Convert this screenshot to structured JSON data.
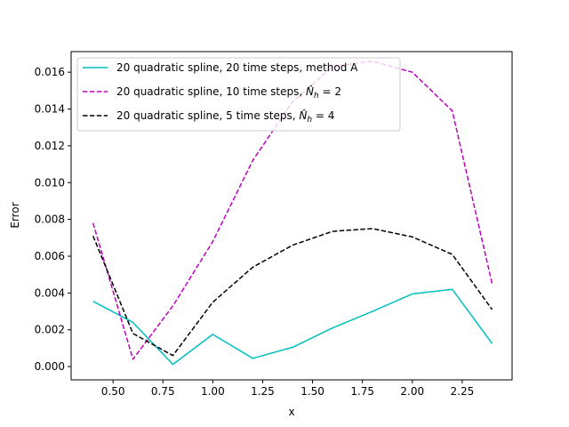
{
  "chart_data": {
    "type": "line",
    "xlabel": "x",
    "ylabel": "Error",
    "xlim": [
      0.29,
      2.5
    ],
    "ylim": [
      -0.00072,
      0.01712
    ],
    "xticks": [
      0.5,
      0.75,
      1.0,
      1.25,
      1.5,
      1.75,
      2.0,
      2.25
    ],
    "xtick_labels": [
      "0.50",
      "0.75",
      "1.00",
      "1.25",
      "1.50",
      "1.75",
      "2.00",
      "2.25"
    ],
    "yticks": [
      0.0,
      0.002,
      0.004,
      0.006,
      0.008,
      0.01,
      0.012,
      0.014,
      0.016
    ],
    "ytick_labels": [
      "0.000",
      "0.002",
      "0.004",
      "0.006",
      "0.008",
      "0.010",
      "0.012",
      "0.014",
      "0.016"
    ],
    "grid": false,
    "legend_position": "top-left",
    "x": [
      0.4,
      0.6,
      0.8,
      1.0,
      1.2,
      1.4,
      1.6,
      1.8,
      2.0,
      2.2,
      2.4
    ],
    "series": [
      {
        "name": "20 quadratic spline, 20 time steps, method A",
        "legend_prefix": "20 quadratic spline, 20 time steps, method A",
        "legend_math": "",
        "color": "#00bfbf",
        "dash": "solid",
        "values": [
          0.00355,
          0.0024,
          0.00012,
          0.00175,
          0.00045,
          0.00105,
          0.0021,
          0.003,
          0.00395,
          0.0042,
          0.00125
        ]
      },
      {
        "name": "20 quadratic spline, 10 time steps, N̂_h = 2",
        "legend_prefix": "20 quadratic spline, 10 time steps, ",
        "legend_math": "2",
        "color": "#bf00bf",
        "dash": "dashed",
        "values": [
          0.0078,
          0.0004,
          0.0033,
          0.0068,
          0.0112,
          0.0144,
          0.0163,
          0.0166,
          0.016,
          0.0139,
          0.0045
        ]
      },
      {
        "name": "20 quadratic spline, 5 time steps, N̂_h = 4",
        "legend_prefix": "20 quadratic spline, 5 time steps, ",
        "legend_math": "4",
        "color": "#000000",
        "dash": "dashed",
        "values": [
          0.0071,
          0.0018,
          0.0006,
          0.0035,
          0.0054,
          0.0066,
          0.00735,
          0.0075,
          0.00705,
          0.0061,
          0.0031
        ]
      }
    ]
  }
}
